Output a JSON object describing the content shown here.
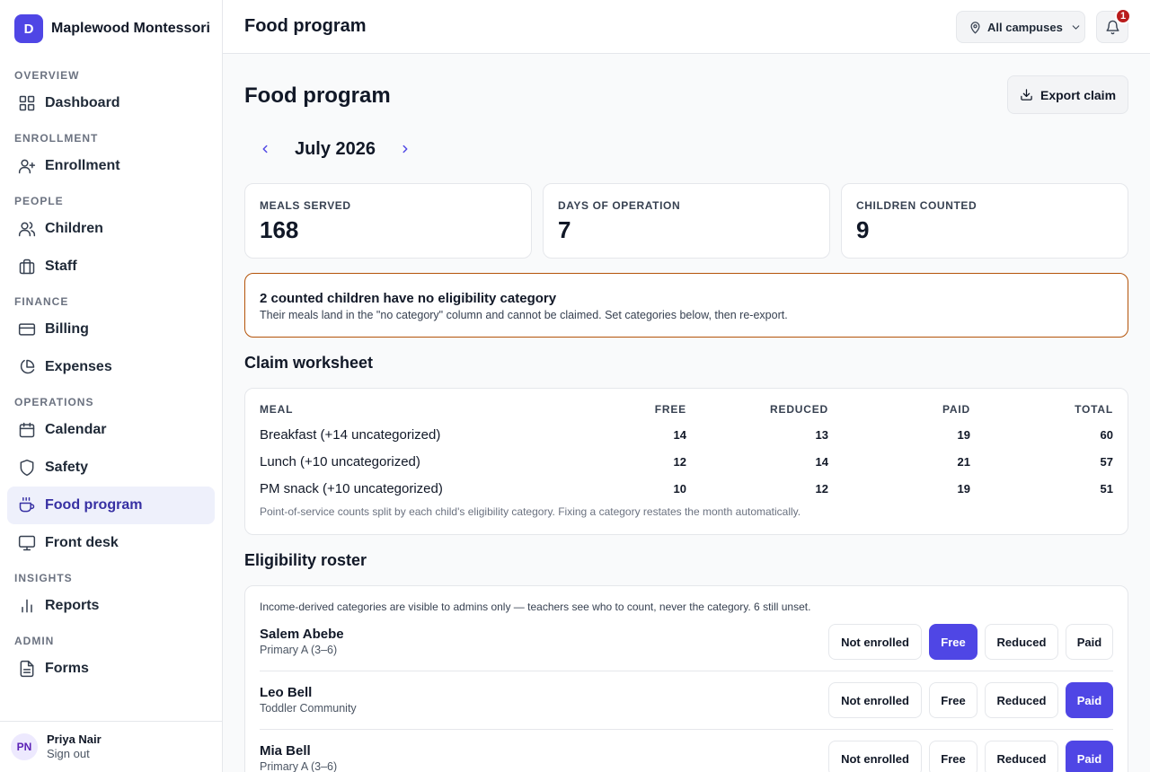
{
  "brand": {
    "logo_letter": "D",
    "name": "Maplewood Montessori"
  },
  "sidebar": {
    "sections": [
      {
        "label": "OVERVIEW",
        "items": [
          {
            "label": "Dashboard",
            "icon": "grid-icon"
          }
        ]
      },
      {
        "label": "ENROLLMENT",
        "items": [
          {
            "label": "Enrollment",
            "icon": "user-plus-icon"
          }
        ]
      },
      {
        "label": "PEOPLE",
        "items": [
          {
            "label": "Children",
            "icon": "users-icon"
          },
          {
            "label": "Staff",
            "icon": "briefcase-icon"
          }
        ]
      },
      {
        "label": "FINANCE",
        "items": [
          {
            "label": "Billing",
            "icon": "credit-card-icon"
          },
          {
            "label": "Expenses",
            "icon": "pie-chart-icon"
          }
        ]
      },
      {
        "label": "OPERATIONS",
        "items": [
          {
            "label": "Calendar",
            "icon": "calendar-icon"
          },
          {
            "label": "Safety",
            "icon": "shield-icon"
          },
          {
            "label": "Food program",
            "icon": "cup-icon",
            "active": true
          },
          {
            "label": "Front desk",
            "icon": "monitor-icon"
          }
        ]
      },
      {
        "label": "INSIGHTS",
        "items": [
          {
            "label": "Reports",
            "icon": "bar-chart-icon"
          }
        ]
      },
      {
        "label": "ADMIN",
        "items": [
          {
            "label": "Forms",
            "icon": "file-icon"
          }
        ]
      }
    ]
  },
  "user": {
    "initials": "PN",
    "name": "Priya Nair",
    "signout": "Sign out"
  },
  "header": {
    "title": "Food program",
    "campus_selector": "All campuses",
    "notification_count": "1"
  },
  "page": {
    "title": "Food program",
    "export_label": "Export claim",
    "month": "July 2026"
  },
  "stats": [
    {
      "label": "MEALS SERVED",
      "value": "168"
    },
    {
      "label": "DAYS OF OPERATION",
      "value": "7"
    },
    {
      "label": "CHILDREN COUNTED",
      "value": "9"
    }
  ],
  "alert": {
    "title": "2 counted children have no eligibility category",
    "body": "Their meals land in the \"no category\" column and cannot be claimed. Set categories below, then re-export."
  },
  "worksheet": {
    "title": "Claim worksheet",
    "columns": [
      "MEAL",
      "FREE",
      "REDUCED",
      "PAID",
      "TOTAL"
    ],
    "rows": [
      [
        "Breakfast (+14 uncategorized)",
        "14",
        "13",
        "19",
        "60"
      ],
      [
        "Lunch (+10 uncategorized)",
        "12",
        "14",
        "21",
        "57"
      ],
      [
        "PM snack (+10 uncategorized)",
        "10",
        "12",
        "19",
        "51"
      ]
    ],
    "note": "Point-of-service counts split by each child's eligibility category. Fixing a category restates the month automatically."
  },
  "roster": {
    "title": "Eligibility roster",
    "note": "Income-derived categories are visible to admins only — teachers see who to count, never the category. 6 still unset.",
    "options": [
      "Not enrolled",
      "Free",
      "Reduced",
      "Paid"
    ],
    "children": [
      {
        "name": "Salem Abebe",
        "room": "Primary A (3–6)",
        "selected": "Free"
      },
      {
        "name": "Leo Bell",
        "room": "Toddler Community",
        "selected": "Paid"
      },
      {
        "name": "Mia Bell",
        "room": "Primary A (3–6)",
        "selected": "Paid"
      }
    ]
  },
  "colors": {
    "accent": "#4f46e5",
    "alert_border": "#b45309",
    "badge": "#b91c1c"
  }
}
